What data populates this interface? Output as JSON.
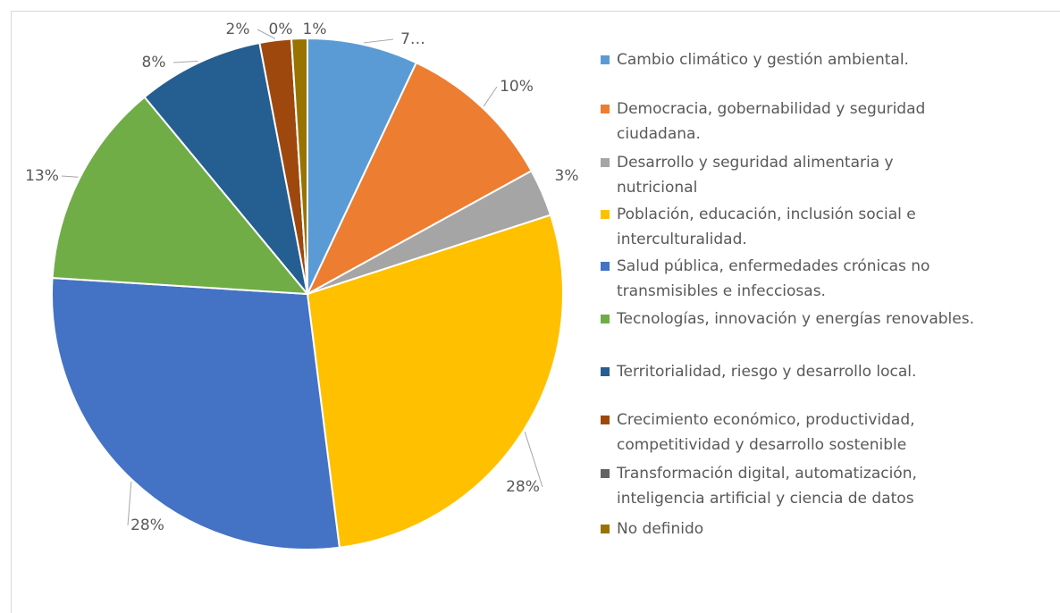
{
  "chart_data": {
    "type": "pie",
    "categories": [
      "Cambio climático y gestión ambiental.",
      "Democracia, gobernabilidad y seguridad ciudadana.",
      "Desarrollo y seguridad alimentaria y nutricional",
      "Población, educación, inclusión social e interculturalidad.",
      "Salud pública, enfermedades crónicas no transmisibles e infecciosas.",
      "Tecnologías, innovación y energías renovables.",
      "Territorialidad, riesgo y desarrollo local.",
      "Crecimiento económico, productividad, competitividad y desarrollo sostenible",
      "Transformación digital, automatización, inteligencia artificial y ciencia de datos",
      "No definido"
    ],
    "values": [
      7,
      10,
      3,
      28,
      28,
      13,
      8,
      2,
      0,
      1
    ],
    "value_labels": [
      "7…",
      "10%",
      "3%",
      "28%",
      "28%",
      "13%",
      "8%",
      "2%",
      "0%",
      "1%"
    ],
    "colors": [
      "#5b9bd5",
      "#ed7d31",
      "#a5a5a5",
      "#ffc000",
      "#4472c4",
      "#70ad47",
      "#255e91",
      "#9e480e",
      "#636363",
      "#997300"
    ],
    "legend": "right"
  }
}
